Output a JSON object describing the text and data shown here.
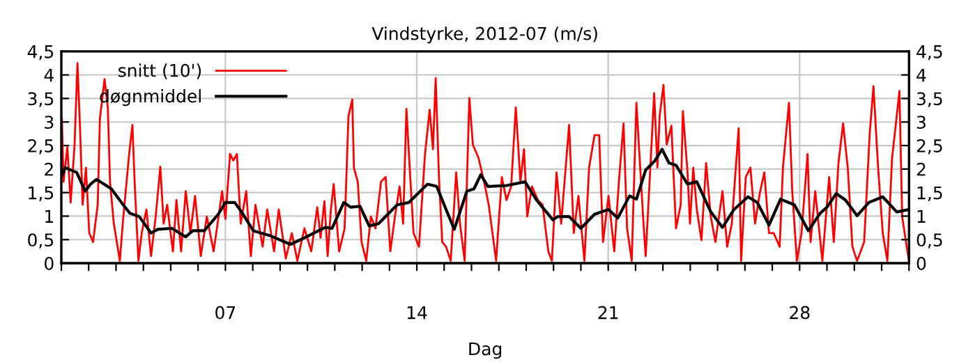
{
  "chart_data": {
    "type": "line",
    "title": "Vindstyrke, 2012-07 (m/s)",
    "xlabel": "Dag",
    "xlim": [
      1,
      32
    ],
    "xticks": [
      {
        "value": 1,
        "label": null
      },
      {
        "value": 2,
        "label": null
      },
      {
        "value": 3,
        "label": null
      },
      {
        "value": 4,
        "label": null
      },
      {
        "value": 5,
        "label": null
      },
      {
        "value": 6,
        "label": null
      },
      {
        "value": 7,
        "label": "07"
      },
      {
        "value": 8,
        "label": null
      },
      {
        "value": 9,
        "label": null
      },
      {
        "value": 10,
        "label": null
      },
      {
        "value": 11,
        "label": null
      },
      {
        "value": 12,
        "label": null
      },
      {
        "value": 13,
        "label": null
      },
      {
        "value": 14,
        "label": "14"
      },
      {
        "value": 15,
        "label": null
      },
      {
        "value": 16,
        "label": null
      },
      {
        "value": 17,
        "label": null
      },
      {
        "value": 18,
        "label": null
      },
      {
        "value": 19,
        "label": null
      },
      {
        "value": 20,
        "label": null
      },
      {
        "value": 21,
        "label": "21"
      },
      {
        "value": 22,
        "label": null
      },
      {
        "value": 23,
        "label": null
      },
      {
        "value": 24,
        "label": null
      },
      {
        "value": 25,
        "label": null
      },
      {
        "value": 26,
        "label": null
      },
      {
        "value": 27,
        "label": null
      },
      {
        "value": 28,
        "label": "28"
      },
      {
        "value": 29,
        "label": null
      },
      {
        "value": 30,
        "label": null
      },
      {
        "value": 31,
        "label": null
      },
      {
        "value": 32,
        "label": null
      }
    ],
    "ylim": [
      0,
      4.5
    ],
    "yticks": [
      0,
      {
        "value": 0.5,
        "label": "0,5"
      },
      1,
      {
        "value": 1.5,
        "label": "1,5"
      },
      2,
      {
        "value": 2.5,
        "label": "2,5"
      },
      3,
      {
        "value": 3.5,
        "label": "3,5"
      },
      4,
      {
        "value": 4.5,
        "label": "4,5"
      }
    ],
    "y2lim": [
      0,
      4.5
    ],
    "y2ticks": [
      0,
      {
        "value": 0.5,
        "label": "0,5"
      },
      1,
      {
        "value": 1.5,
        "label": "1,5"
      },
      2,
      {
        "value": 2.5,
        "label": "2,5"
      },
      3,
      {
        "value": 3.5,
        "label": "3,5"
      },
      4,
      {
        "value": 4.5,
        "label": "4,5"
      }
    ],
    "grid": true,
    "legend": "top left",
    "marker": "none",
    "line_style": "solid",
    "series": [
      {
        "name": "snitt (10')",
        "color": "#ff0000",
        "x": [
          1.02,
          1.08,
          1.22,
          1.34,
          1.48,
          1.59,
          1.68,
          1.78,
          1.9,
          2.02,
          2.16,
          2.33,
          2.41,
          2.58,
          2.7,
          2.78,
          2.92,
          3.14,
          3.26,
          3.48,
          3.6,
          3.68,
          3.82,
          3.94,
          4.11,
          4.28,
          4.45,
          4.62,
          4.74,
          4.87,
          5.08,
          5.21,
          5.38,
          5.55,
          5.72,
          5.89,
          6.1,
          6.32,
          6.57,
          6.88,
          7.0,
          7.17,
          7.29,
          7.42,
          7.56,
          7.76,
          7.93,
          8.1,
          8.36,
          8.53,
          8.78,
          8.95,
          9.21,
          9.43,
          9.63,
          9.89,
          10.14,
          10.36,
          10.48,
          10.62,
          10.74,
          10.85,
          10.96,
          11.16,
          11.36,
          11.5,
          11.64,
          11.7,
          11.84,
          11.98,
          12.15,
          12.32,
          12.49,
          12.69,
          12.86,
          13.03,
          13.2,
          13.37,
          13.5,
          13.62,
          13.74,
          13.88,
          14.08,
          14.3,
          14.47,
          14.59,
          14.69,
          14.81,
          14.93,
          15.07,
          15.24,
          15.44,
          15.58,
          15.75,
          15.92,
          16.05,
          16.26,
          16.46,
          16.63,
          16.9,
          17.11,
          17.28,
          17.45,
          17.62,
          17.79,
          17.92,
          18.04,
          18.21,
          18.43,
          18.6,
          18.81,
          18.94,
          19.11,
          19.28,
          19.57,
          19.74,
          19.91,
          20.13,
          20.3,
          20.5,
          20.67,
          20.81,
          21.01,
          21.22,
          21.39,
          21.56,
          21.69,
          21.86,
          22.03,
          22.2,
          22.29,
          22.37,
          22.54,
          22.68,
          22.8,
          22.88,
          23.02,
          23.14,
          23.31,
          23.48,
          23.65,
          23.73,
          23.9,
          23.99,
          24.11,
          24.24,
          24.41,
          24.58,
          24.75,
          24.92,
          25.18,
          25.35,
          25.52,
          25.77,
          25.86,
          26.03,
          26.2,
          26.37,
          26.54,
          26.71,
          26.88,
          27.05,
          27.27,
          27.39,
          27.61,
          27.73,
          27.9,
          28.07,
          28.29,
          28.4,
          28.57,
          28.83,
          29.08,
          29.25,
          29.42,
          29.59,
          29.76,
          29.93,
          30.1,
          30.36,
          30.56,
          30.7,
          30.87,
          31.04,
          31.21,
          31.38,
          31.55,
          31.65,
          31.75,
          31.89,
          32.0
        ],
        "values": [
          3.07,
          1.73,
          2.47,
          1.29,
          2.47,
          4.25,
          2.92,
          1.24,
          2.03,
          0.64,
          0.45,
          1.24,
          3.07,
          3.91,
          3.31,
          1.73,
          0.84,
          0.05,
          0.94,
          2.32,
          2.94,
          1.73,
          0.05,
          0.64,
          1.14,
          0.15,
          0.99,
          2.05,
          0.84,
          1.24,
          0.25,
          1.34,
          0.25,
          1.53,
          0.64,
          1.43,
          0.15,
          0.99,
          0.25,
          1.53,
          0.94,
          2.32,
          2.18,
          2.32,
          0.84,
          1.53,
          0.15,
          1.24,
          0.35,
          1.14,
          0.25,
          1.14,
          0.1,
          0.64,
          0.05,
          0.74,
          0.25,
          1.19,
          0.54,
          1.32,
          0.15,
          1.09,
          1.68,
          0.25,
          0.74,
          3.12,
          3.48,
          2.03,
          1.73,
          0.45,
          0.05,
          0.99,
          0.74,
          1.73,
          1.83,
          0.25,
          0.99,
          1.63,
          0.84,
          3.28,
          2.03,
          0.64,
          0.35,
          2.32,
          3.26,
          2.42,
          3.93,
          1.83,
          0.45,
          0.35,
          0.05,
          1.93,
          0.84,
          0.05,
          3.51,
          2.52,
          2.23,
          1.73,
          1.24,
          0.05,
          1.83,
          1.34,
          1.63,
          3.31,
          1.73,
          2.42,
          0.99,
          1.63,
          1.34,
          1.24,
          0.25,
          0.05,
          1.93,
          0.84,
          2.94,
          0.64,
          1.43,
          0.05,
          2.03,
          2.72,
          2.72,
          0.45,
          1.43,
          0.25,
          1.73,
          2.97,
          0.74,
          0.05,
          3.41,
          1.73,
          0.84,
          0.15,
          2.03,
          3.61,
          2.03,
          3.12,
          3.79,
          2.52,
          2.92,
          0.74,
          1.24,
          3.23,
          1.93,
          0.84,
          2.03,
          1.14,
          0.49,
          2.13,
          0.99,
          0.45,
          1.53,
          0.35,
          0.84,
          2.87,
          0.05,
          1.83,
          2.03,
          0.84,
          1.48,
          1.93,
          0.64,
          0.64,
          0.35,
          2.03,
          3.41,
          1.53,
          0.05,
          0.64,
          2.32,
          0.45,
          1.53,
          0.05,
          1.83,
          0.45,
          2.13,
          2.97,
          2.03,
          0.35,
          0.05,
          0.45,
          2.72,
          3.76,
          2.03,
          0.64,
          0.05,
          2.23,
          3.12,
          3.66,
          0.99,
          0.45,
          0.05
        ]
      },
      {
        "name": "døgnmiddel",
        "color": "#000000",
        "x": [
          1.0,
          1.14,
          1.56,
          1.87,
          2.07,
          2.29,
          2.83,
          3.26,
          3.51,
          3.85,
          4.28,
          4.53,
          5.04,
          5.55,
          5.81,
          6.23,
          6.74,
          7.0,
          7.34,
          7.59,
          8.02,
          8.61,
          9.38,
          9.89,
          10.65,
          10.9,
          11.33,
          11.58,
          11.92,
          12.26,
          12.6,
          13.28,
          13.71,
          14.39,
          14.73,
          15.07,
          15.37,
          15.83,
          16.09,
          16.34,
          16.6,
          17.28,
          17.96,
          18.38,
          18.98,
          19.15,
          19.57,
          20.0,
          20.5,
          21.01,
          21.35,
          21.78,
          22.03,
          22.37,
          22.71,
          22.97,
          23.22,
          23.48,
          23.9,
          24.24,
          24.75,
          25.18,
          25.6,
          26.11,
          26.45,
          26.88,
          27.3,
          27.81,
          28.32,
          28.75,
          29.0,
          29.34,
          29.68,
          30.1,
          30.53,
          31.04,
          31.55,
          32.0
        ],
        "values": [
          1.83,
          2.03,
          1.93,
          1.53,
          1.68,
          1.78,
          1.58,
          1.24,
          1.06,
          0.99,
          0.64,
          0.72,
          0.74,
          0.56,
          0.69,
          0.69,
          1.04,
          1.29,
          1.29,
          1.09,
          0.69,
          0.59,
          0.4,
          0.54,
          0.76,
          0.74,
          1.29,
          1.19,
          1.21,
          0.79,
          0.84,
          1.24,
          1.29,
          1.68,
          1.63,
          1.14,
          0.72,
          1.53,
          1.58,
          1.88,
          1.63,
          1.65,
          1.73,
          1.34,
          0.92,
          0.99,
          0.99,
          0.74,
          1.04,
          1.14,
          0.96,
          1.43,
          1.36,
          1.98,
          2.18,
          2.42,
          2.13,
          2.08,
          1.68,
          1.73,
          1.09,
          0.76,
          1.14,
          1.41,
          1.29,
          0.81,
          1.36,
          1.24,
          0.69,
          1.06,
          1.19,
          1.48,
          1.34,
          1.01,
          1.29,
          1.41,
          1.09,
          1.14
        ]
      }
    ]
  }
}
